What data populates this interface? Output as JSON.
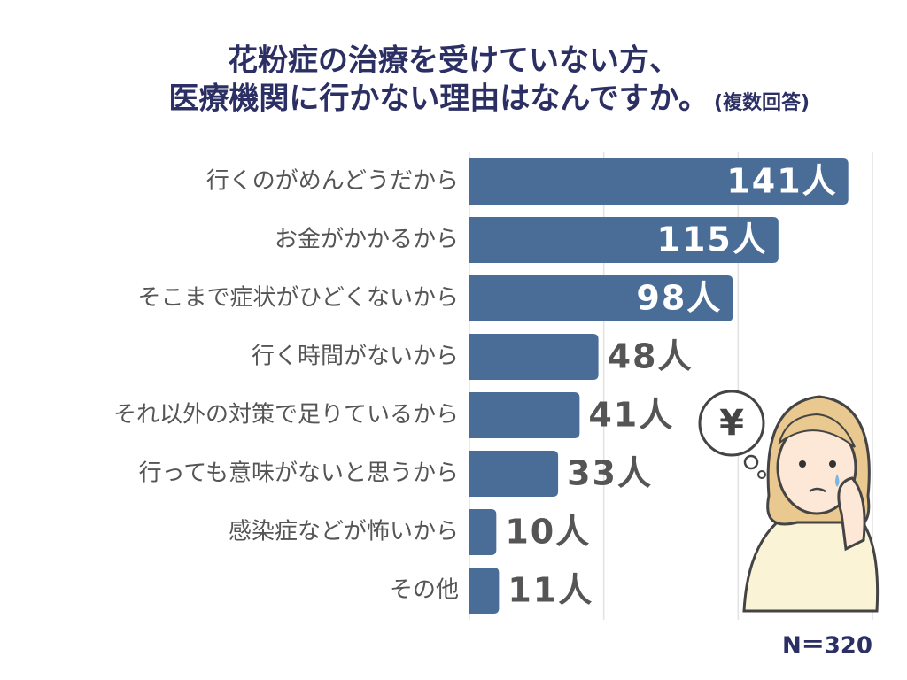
{
  "chart_data": {
    "type": "bar",
    "orientation": "horizontal",
    "title": [
      "花粉症の治療を受けていない方、",
      "医療機関に行かない理由はなんですか。"
    ],
    "subtitle": "(複数回答)",
    "categories": [
      "行くのがめんどうだから",
      "お金がかかるから",
      "そこまで症状がひどくないから",
      "行く時間がないから",
      "それ以外の対策で足りているから",
      "行っても意味がないと思うから",
      "感染症などが怖いから",
      "その他"
    ],
    "values": [
      141,
      115,
      98,
      48,
      41,
      33,
      10,
      11
    ],
    "value_labels": [
      "141人",
      "115人",
      "98人",
      "48人",
      "41人",
      "33人",
      "10人",
      "11人"
    ],
    "color": "#4a6d98",
    "xlim": [
      0,
      150
    ],
    "xticks": [
      0,
      50,
      100,
      150
    ],
    "grid": true,
    "annotations": [
      "¥"
    ],
    "note": "N＝320"
  }
}
